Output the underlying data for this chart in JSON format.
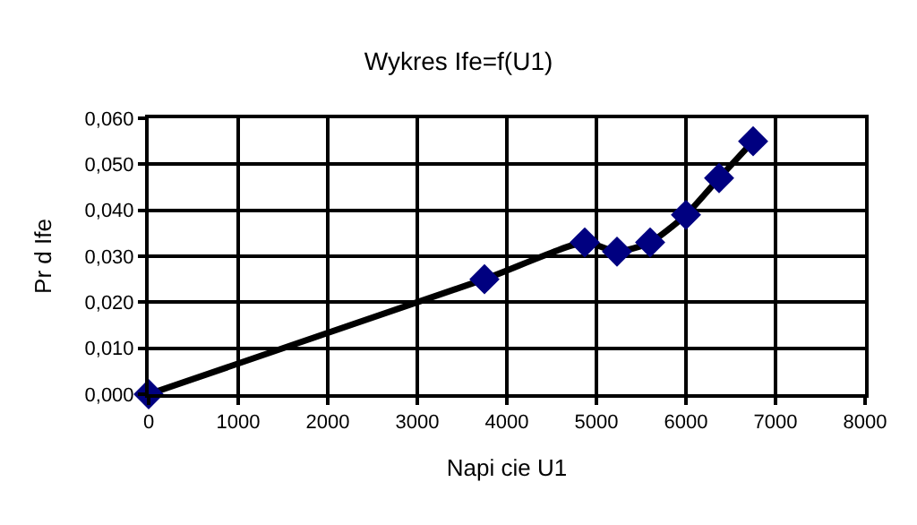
{
  "chart_data": {
    "type": "line",
    "title": "Wykres Ife=f(U1)",
    "xlabel": "Napi cie U1",
    "ylabel": "Pr d Ife",
    "x": [
      0,
      3750,
      4870,
      5230,
      5600,
      6000,
      6370,
      6750
    ],
    "series": [
      {
        "color": "#000080",
        "values": [
          0,
          0.025,
          0.033,
          0.031,
          0.033,
          0.039,
          0.047,
          0.055
        ]
      }
    ],
    "xlim": [
      0,
      8000
    ],
    "xticks": [
      0,
      1000,
      2000,
      3000,
      4000,
      5000,
      6000,
      7000,
      8000
    ],
    "ylim": [
      0,
      0.06
    ],
    "yticks": [
      {
        "value": 0,
        "label": "0,000"
      },
      {
        "value": 0.01,
        "label": "0,010"
      },
      {
        "value": 0.02,
        "label": "0,020"
      },
      {
        "value": 0.03,
        "label": "0,030"
      },
      {
        "value": 0.04,
        "label": "0,040"
      },
      {
        "value": 0.05,
        "label": "0,050"
      },
      {
        "value": 0.06,
        "label": "0,060"
      }
    ],
    "grid": true,
    "marker": "diamond",
    "line_style": "solid",
    "legend": false
  }
}
